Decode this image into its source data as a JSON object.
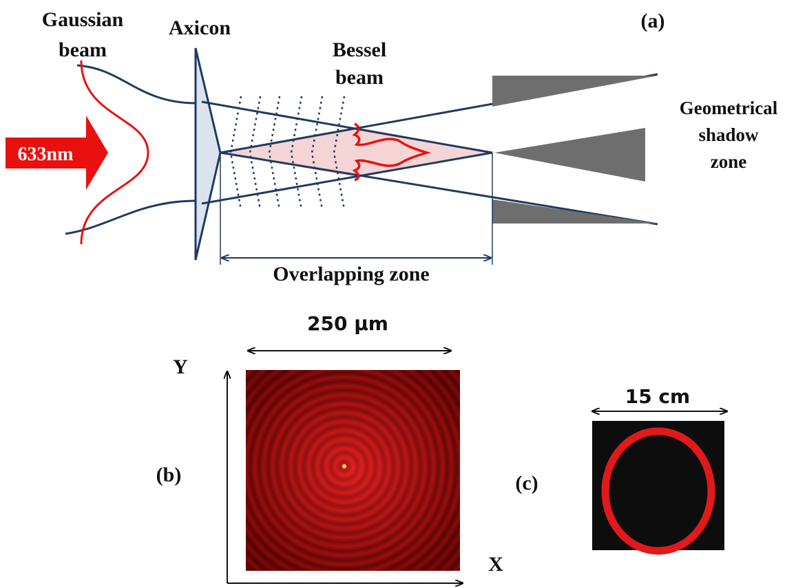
{
  "diagram": {
    "gaussian_beam": [
      "Gaussian",
      "beam"
    ],
    "axicon": "Axicon",
    "panel_a": "(a)",
    "bessel_beam": [
      "Bessel",
      "beam"
    ],
    "geometrical_shadow_zone": [
      "Geometrical",
      "shadow",
      "zone"
    ],
    "wavelength": "633nm",
    "overlapping_zone": "Overlapping zone",
    "scale_b": "250 μm",
    "axis_y": "Y",
    "axis_x": "X",
    "panel_b": "(b)",
    "panel_c": "(c)",
    "scale_c": "15 cm"
  }
}
